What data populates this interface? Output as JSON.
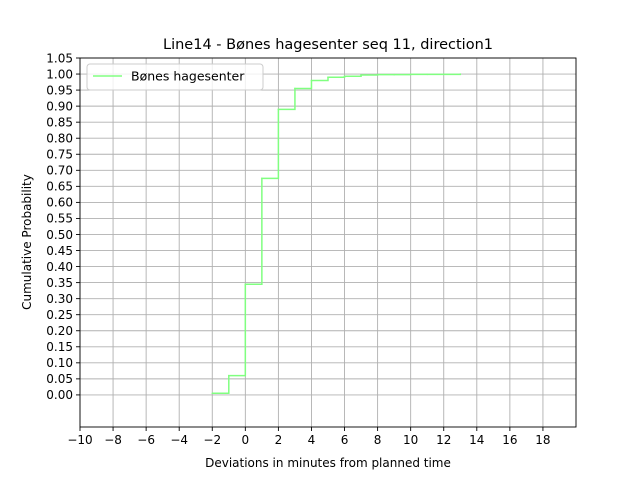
{
  "chart_data": {
    "type": "line",
    "drawstyle": "steps-post",
    "title": "Line14 - Bønes hagesenter seq 11, direction1",
    "xlabel": "Deviations in minutes from planned time",
    "ylabel": "Cumulative Probability",
    "xlim": [
      -10,
      20
    ],
    "ylim": [
      -0.1,
      1.05
    ],
    "xticks": [
      -10,
      -8,
      -6,
      -4,
      -2,
      0,
      2,
      4,
      6,
      8,
      10,
      12,
      14,
      16,
      18
    ],
    "xtick_labels": [
      "−10",
      "−8",
      "−6",
      "−4",
      "−2",
      "0",
      "2",
      "4",
      "6",
      "8",
      "10",
      "12",
      "14",
      "16",
      "18"
    ],
    "yticks": [
      0.0,
      0.05,
      0.1,
      0.15,
      0.2,
      0.25,
      0.3,
      0.35,
      0.4,
      0.45,
      0.5,
      0.55,
      0.6,
      0.65,
      0.7,
      0.75,
      0.8,
      0.85,
      0.9,
      0.95,
      1.0,
      1.05
    ],
    "ytick_labels": [
      "0.00",
      "0.05",
      "0.10",
      "0.15",
      "0.20",
      "0.25",
      "0.30",
      "0.35",
      "0.40",
      "0.45",
      "0.50",
      "0.55",
      "0.60",
      "0.65",
      "0.70",
      "0.75",
      "0.80",
      "0.85",
      "0.90",
      "0.95",
      "1.00",
      "1.05"
    ],
    "grid": true,
    "legend_position": "top-left",
    "series": [
      {
        "name": "Bønes hagesenter",
        "color": "#80ff80",
        "x": [
          -2,
          -1,
          0,
          1,
          2,
          3,
          4,
          5,
          6,
          7,
          8,
          9,
          10,
          11,
          12,
          13
        ],
        "y": [
          0.005,
          0.06,
          0.345,
          0.675,
          0.89,
          0.955,
          0.98,
          0.99,
          0.993,
          0.997,
          0.998,
          0.998,
          0.999,
          0.999,
          0.999,
          1.0
        ]
      }
    ]
  }
}
